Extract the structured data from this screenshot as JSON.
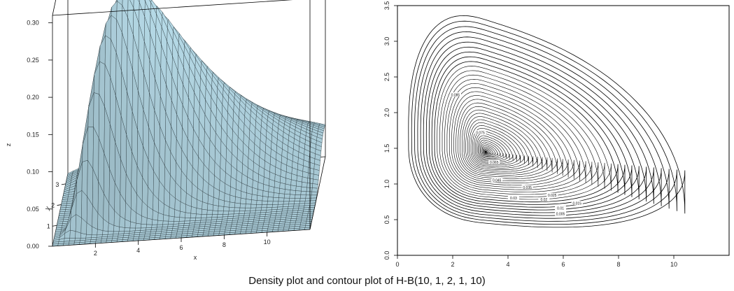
{
  "caption": "Density plot and contour plot of H-B(10, 1, 2, 1, 10)",
  "chart_data": [
    {
      "type": "surface",
      "xlabel": "x",
      "ylabel": "y",
      "zlabel": "z",
      "x_ticks": [
        "2",
        "4",
        "6",
        "8",
        "10"
      ],
      "y_ticks": [
        "1",
        "2",
        "3"
      ],
      "z_ticks": [
        "0.00",
        "0.05",
        "0.10",
        "0.15",
        "0.20",
        "0.25",
        "0.30"
      ],
      "xlim": [
        0,
        12
      ],
      "ylim": [
        0,
        3.5
      ],
      "zlim": [
        0,
        0.31
      ],
      "peak": {
        "x": 3.2,
        "y": 1.45,
        "z": 0.3
      },
      "surface_color": "#a7c8d4"
    },
    {
      "type": "contour",
      "x_ticks": [
        "0",
        "2",
        "4",
        "6",
        "8",
        "10"
      ],
      "y_ticks": [
        "0.0",
        "0.5",
        "1.0",
        "1.5",
        "2.0",
        "2.5",
        "3.0",
        "3.5"
      ],
      "xlim": [
        0,
        12
      ],
      "ylim": [
        0,
        3.5
      ],
      "mode": {
        "x": 3.2,
        "y": 1.45
      },
      "outer_extent": {
        "xmin": 0.4,
        "xmax": 10.4,
        "ymin": 0.45,
        "ymax": 3.3
      },
      "contour_labels": [
        "0.005",
        "0.01",
        "0.015",
        "0.02",
        "0.025",
        "0.03",
        "0.035",
        "0.045",
        "0.065",
        "0.075",
        "0.085"
      ]
    }
  ]
}
